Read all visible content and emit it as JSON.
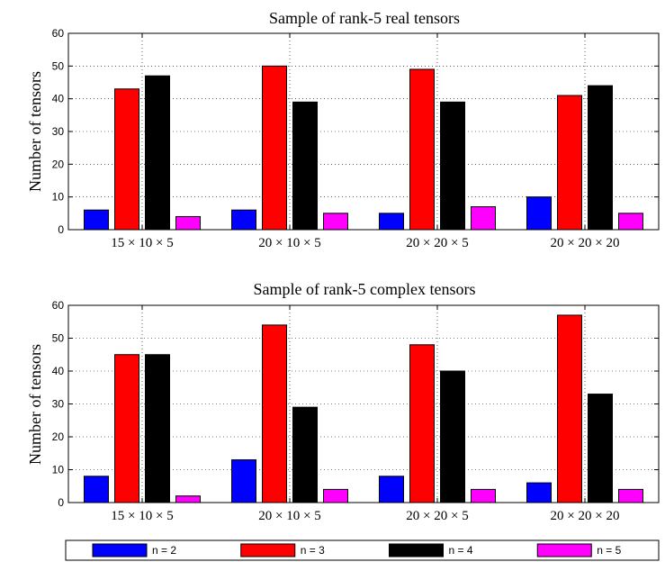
{
  "chart_data": [
    {
      "type": "bar",
      "title": "Sample of rank-5 real tensors",
      "xlabel": "",
      "ylabel": "Number of tensors",
      "ylim": [
        0,
        60
      ],
      "yticks": [
        0,
        10,
        20,
        30,
        40,
        50,
        60
      ],
      "grid": true,
      "categories": [
        "15 × 10 × 5",
        "20 × 10 × 5",
        "20 × 20 × 5",
        "20 × 20 × 20"
      ],
      "series": [
        {
          "name": "n = 2",
          "color": "#0000ff",
          "values": [
            6,
            6,
            5,
            10
          ]
        },
        {
          "name": "n = 3",
          "color": "#ff0000",
          "values": [
            43,
            50,
            49,
            41
          ]
        },
        {
          "name": "n = 4",
          "color": "#000000",
          "values": [
            47,
            39,
            39,
            44
          ]
        },
        {
          "name": "n = 5",
          "color": "#ff00ff",
          "values": [
            4,
            5,
            7,
            5
          ]
        }
      ]
    },
    {
      "type": "bar",
      "title": "Sample of rank-5 complex tensors",
      "xlabel": "",
      "ylabel": "Number of tensors",
      "ylim": [
        0,
        60
      ],
      "yticks": [
        0,
        10,
        20,
        30,
        40,
        50,
        60
      ],
      "grid": true,
      "categories": [
        "15 × 10 × 5",
        "20 × 10 × 5",
        "20 × 20 × 5",
        "20 × 20 × 20"
      ],
      "series": [
        {
          "name": "n = 2",
          "color": "#0000ff",
          "values": [
            8,
            13,
            8,
            6
          ]
        },
        {
          "name": "n = 3",
          "color": "#ff0000",
          "values": [
            45,
            54,
            48,
            57
          ]
        },
        {
          "name": "n = 4",
          "color": "#000000",
          "values": [
            45,
            29,
            40,
            33
          ]
        },
        {
          "name": "n = 5",
          "color": "#ff00ff",
          "values": [
            2,
            4,
            4,
            4
          ]
        }
      ]
    }
  ],
  "legend": {
    "placement": "bottom",
    "entries": [
      {
        "label": "n = 2",
        "color": "#0000ff"
      },
      {
        "label": "n = 3",
        "color": "#ff0000"
      },
      {
        "label": "n = 4",
        "color": "#000000"
      },
      {
        "label": "n = 5",
        "color": "#ff00ff"
      }
    ]
  }
}
